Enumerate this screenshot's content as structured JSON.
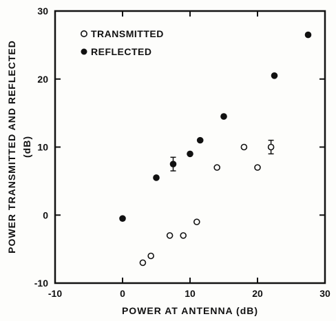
{
  "chart_data": {
    "type": "scatter",
    "title": "",
    "xlabel": "POWER AT ANTENNA (dB)",
    "ylabel_line1": "POWER TRANSMITTED AND REFLECTED",
    "ylabel_line2": "(dB)",
    "xlim": [
      -10,
      30
    ],
    "ylim": [
      -10,
      30
    ],
    "xticks": [
      -10,
      0,
      10,
      20,
      30
    ],
    "yticks": [
      -10,
      0,
      10,
      20,
      30
    ],
    "tick_labels": {
      "x": [
        "-10",
        "0",
        "10",
        "20",
        "30"
      ],
      "y": [
        "-10",
        "0",
        "10",
        "20",
        "30"
      ]
    },
    "grid": false,
    "legend_position": "top-left",
    "series": [
      {
        "name": "TRANSMITTED",
        "marker": "open-circle",
        "points": [
          {
            "x": 3,
            "y": -7
          },
          {
            "x": 4.2,
            "y": -6
          },
          {
            "x": 7,
            "y": -3
          },
          {
            "x": 9,
            "y": -3
          },
          {
            "x": 11,
            "y": -1
          },
          {
            "x": 14,
            "y": 7
          },
          {
            "x": 18,
            "y": 10
          },
          {
            "x": 20,
            "y": 7
          },
          {
            "x": 22,
            "y": 10,
            "err": 1
          }
        ]
      },
      {
        "name": "REFLECTED",
        "marker": "filled-circle",
        "points": [
          {
            "x": 0,
            "y": -0.5
          },
          {
            "x": 5,
            "y": 5.5
          },
          {
            "x": 7.5,
            "y": 7.5,
            "err": 1
          },
          {
            "x": 10,
            "y": 9
          },
          {
            "x": 11.5,
            "y": 11
          },
          {
            "x": 15,
            "y": 14.5
          },
          {
            "x": 22.5,
            "y": 20.5
          },
          {
            "x": 27.5,
            "y": 26.5
          }
        ]
      }
    ]
  }
}
